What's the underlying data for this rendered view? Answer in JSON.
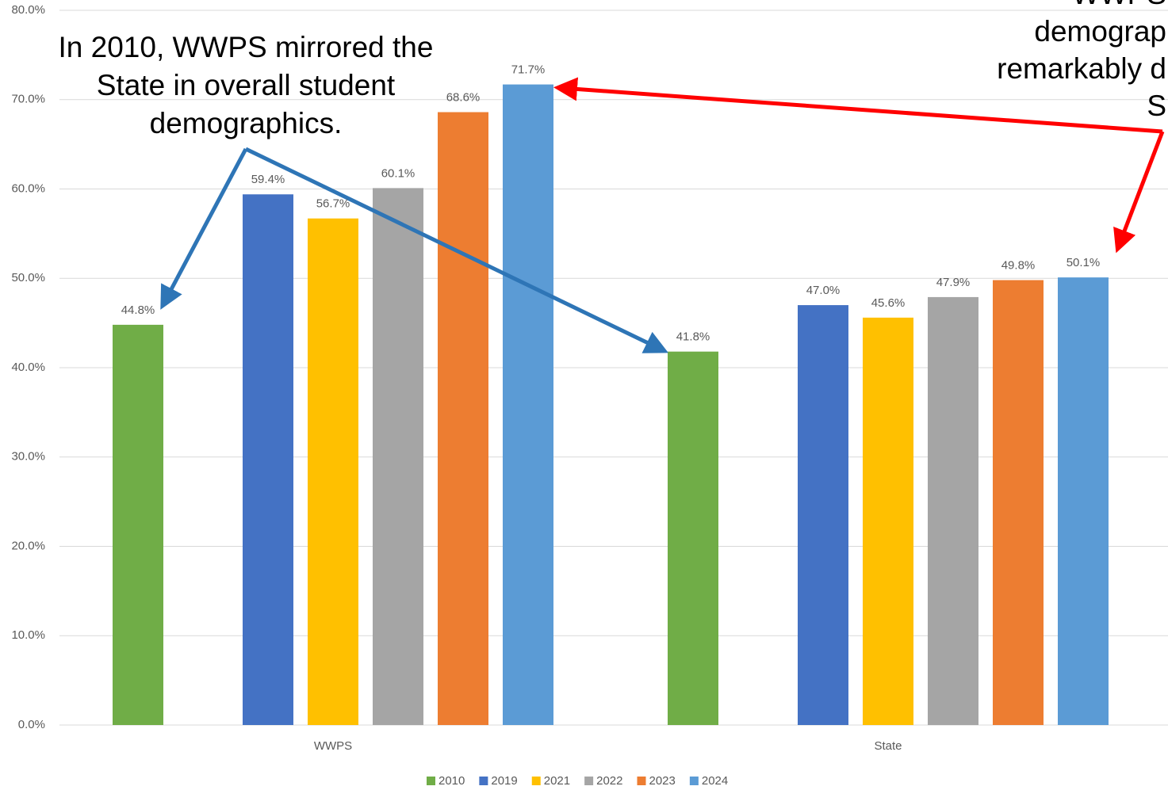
{
  "chart_data": {
    "type": "bar",
    "categories": [
      "WWPS",
      "State"
    ],
    "series": [
      {
        "name": "2010",
        "color": "#70ad47",
        "values": [
          44.8,
          41.8
        ],
        "value_labels": [
          "44.8%",
          "41.8%"
        ]
      },
      {
        "name": "2019",
        "color": "#4472c4",
        "values": [
          59.4,
          47.0
        ],
        "value_labels": [
          "59.4%",
          "47.0%"
        ]
      },
      {
        "name": "2021",
        "color": "#ffc000",
        "values": [
          56.7,
          45.6
        ],
        "value_labels": [
          "56.7%",
          "45.6%"
        ]
      },
      {
        "name": "2022",
        "color": "#a5a5a5",
        "values": [
          60.1,
          47.9
        ],
        "value_labels": [
          "60.1%",
          "47.9%"
        ]
      },
      {
        "name": "2023",
        "color": "#ed7d31",
        "values": [
          68.6,
          49.8
        ],
        "value_labels": [
          "68.6%",
          "49.8%"
        ]
      },
      {
        "name": "2024",
        "color": "#5b9bd5",
        "values": [
          71.7,
          50.1
        ],
        "value_labels": [
          "71.7%",
          "50.1%"
        ]
      }
    ],
    "ylim": [
      0,
      80
    ],
    "yticks": [
      {
        "value": 0,
        "label": "0.0%"
      },
      {
        "value": 10,
        "label": "10.0%"
      },
      {
        "value": 20,
        "label": "20.0%"
      },
      {
        "value": 30,
        "label": "30.0%"
      },
      {
        "value": 40,
        "label": "40.0%"
      },
      {
        "value": 50,
        "label": "50.0%"
      },
      {
        "value": 60,
        "label": "60.0%"
      },
      {
        "value": 70,
        "label": "70.0%"
      },
      {
        "value": 80,
        "label": "80.0%"
      }
    ],
    "grid": true,
    "legend": "bottom",
    "annotations": [
      {
        "lines": [
          "In 2010, WWPS mirrored the",
          "State in overall student",
          "demographics."
        ]
      },
      {
        "lines": [
          "WWPS",
          "demograp",
          "remarkably d",
          "S"
        ]
      }
    ]
  }
}
